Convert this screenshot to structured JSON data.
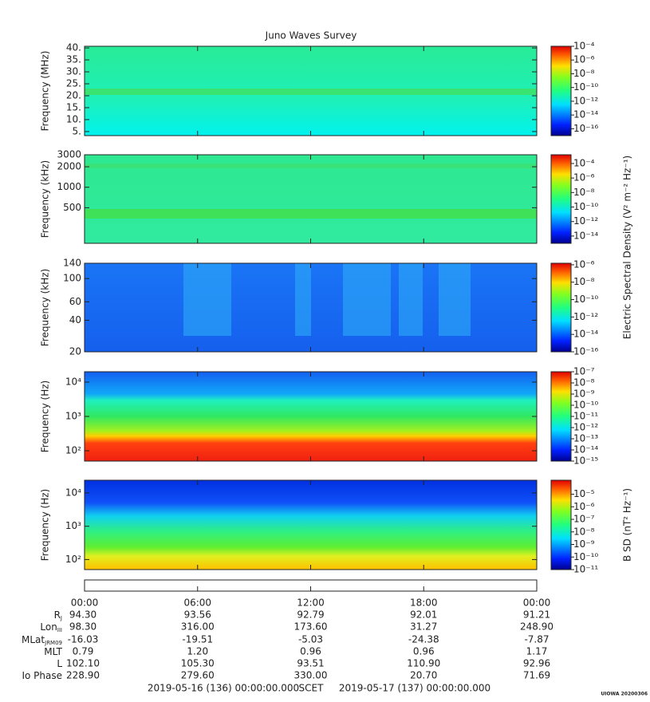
{
  "chart_data": [
    {
      "type": "spectrogram",
      "ylabel": "Frequency (MHz)",
      "log": false,
      "ylim": [
        3.3,
        40.7
      ],
      "yticks": [
        {
          "value": 5,
          "label": "5."
        },
        {
          "value": 10,
          "label": "10."
        },
        {
          "value": 15,
          "label": "15."
        },
        {
          "value": 20,
          "label": "20."
        },
        {
          "value": 25,
          "label": "25."
        },
        {
          "value": 30,
          "label": "30."
        },
        {
          "value": 35,
          "label": "35."
        },
        {
          "value": 40,
          "label": "40."
        }
      ],
      "colorbar": {
        "lim": [
          1e-17,
          0.0001
        ],
        "ticks": [
          {
            "value": 0.0001,
            "label": "10⁻⁴"
          },
          {
            "value": 1e-06,
            "label": "10⁻⁶"
          },
          {
            "value": 1e-08,
            "label": "10⁻⁸"
          },
          {
            "value": 1e-10,
            "label": "10⁻¹⁰"
          },
          {
            "value": 1e-12,
            "label": "10⁻¹²"
          },
          {
            "value": 1e-14,
            "label": "10⁻¹⁴"
          },
          {
            "value": 1e-16,
            "label": "10⁻¹⁶"
          }
        ]
      }
    },
    {
      "type": "spectrogram",
      "ylabel": "Frequency (kHz)",
      "log": true,
      "ylim": [
        150,
        3000
      ],
      "yticks": [
        500,
        1000,
        2000,
        3000
      ],
      "colorbar": {
        "lim": [
          1e-15,
          0.0016
        ],
        "ticks": [
          {
            "value": 0.0001,
            "label": "10⁻⁴"
          },
          {
            "value": 1e-06,
            "label": "10⁻⁶"
          },
          {
            "value": 1e-08,
            "label": "10⁻⁸"
          },
          {
            "value": 1e-10,
            "label": "10⁻¹⁰"
          },
          {
            "value": 1e-12,
            "label": "10⁻¹²"
          },
          {
            "value": 1e-14,
            "label": "10⁻¹⁴"
          }
        ]
      }
    },
    {
      "type": "spectrogram",
      "ylabel": "Frequency (kHz)",
      "log": true,
      "ylim": [
        20,
        140
      ],
      "yticks": [
        20,
        40,
        60,
        100,
        140
      ],
      "colorbar": {
        "lim": [
          1e-16,
          1.5e-06
        ],
        "ticks": [
          {
            "value": 1e-06,
            "label": "10⁻⁶"
          },
          {
            "value": 1e-08,
            "label": "10⁻⁸"
          },
          {
            "value": 1e-10,
            "label": "10⁻¹⁰"
          },
          {
            "value": 1e-12,
            "label": "10⁻¹²"
          },
          {
            "value": 1e-14,
            "label": "10⁻¹⁴"
          },
          {
            "value": 1e-16,
            "label": "10⁻¹⁶"
          }
        ]
      }
    },
    {
      "type": "spectrogram",
      "ylabel": "Frequency (Hz)",
      "log": true,
      "ylim": [
        50,
        20000
      ],
      "yticks": [
        {
          "value": 100,
          "label": "10²"
        },
        {
          "value": 1000,
          "label": "10³"
        },
        {
          "value": 10000,
          "label": "10⁴"
        }
      ],
      "colorbar": {
        "lim": [
          1e-15,
          1e-07
        ],
        "ticks": [
          {
            "value": 1e-07,
            "label": "10⁻⁷"
          },
          {
            "value": 1e-08,
            "label": "10⁻⁸"
          },
          {
            "value": 1e-09,
            "label": "10⁻⁹"
          },
          {
            "value": 1e-10,
            "label": "10⁻¹⁰"
          },
          {
            "value": 1e-11,
            "label": "10⁻¹¹"
          },
          {
            "value": 1e-12,
            "label": "10⁻¹²"
          },
          {
            "value": 1e-13,
            "label": "10⁻¹³"
          },
          {
            "value": 1e-14,
            "label": "10⁻¹⁴"
          },
          {
            "value": 1e-15,
            "label": "10⁻¹⁵"
          }
        ]
      }
    },
    {
      "type": "spectrogram",
      "ylabel": "Frequency (Hz)",
      "log": true,
      "ylim": [
        50,
        24000
      ],
      "yticks": [
        {
          "value": 100,
          "label": "10²"
        },
        {
          "value": 1000,
          "label": "10³"
        },
        {
          "value": 10000,
          "label": "10⁴"
        }
      ],
      "colorbar": {
        "lim": [
          1e-11,
          0.00013
        ],
        "ticks": [
          {
            "value": 1e-05,
            "label": "10⁻⁵"
          },
          {
            "value": 1e-06,
            "label": "10⁻⁶"
          },
          {
            "value": 1e-07,
            "label": "10⁻⁷"
          },
          {
            "value": 1e-08,
            "label": "10⁻⁸"
          },
          {
            "value": 1e-09,
            "label": "10⁻⁹"
          },
          {
            "value": 1e-10,
            "label": "10⁻¹⁰"
          },
          {
            "value": 1e-11,
            "label": "10⁻¹¹"
          }
        ]
      }
    }
  ],
  "title": "Juno Waves Survey",
  "electric_colorbar_label": "Electric Spectral Density (V² m⁻² Hz⁻¹)",
  "magnetic_colorbar_label": "B SD (nT² Hz⁻¹)",
  "time_axis": {
    "xlim": [
      0,
      24
    ],
    "xticks": [
      {
        "value": 0,
        "label": "00:00"
      },
      {
        "value": 6,
        "label": "06:00"
      },
      {
        "value": 12,
        "label": "12:00"
      },
      {
        "value": 18,
        "label": "18:00"
      },
      {
        "value": 24,
        "label": "00:00"
      }
    ]
  },
  "ephemeris": [
    {
      "label": "R",
      "subscript": "J",
      "values": [
        "94.30",
        "93.56",
        "92.79",
        "92.01",
        "91.21"
      ]
    },
    {
      "label": "Lon",
      "subscript": "III",
      "values": [
        "98.30",
        "316.00",
        "173.60",
        "31.27",
        "248.90"
      ]
    },
    {
      "label": "MLat",
      "subscript": "JRM09",
      "values": [
        "-16.03",
        "-19.51",
        "-5.03",
        "-24.38",
        "-7.87"
      ]
    },
    {
      "label": "MLT",
      "subscript": null,
      "values": [
        "0.79",
        "1.20",
        "0.96",
        "0.96",
        "1.17"
      ]
    },
    {
      "label": "L",
      "subscript": null,
      "values": [
        "102.10",
        "105.30",
        "93.51",
        "110.90",
        "92.96"
      ]
    },
    {
      "label": "Io Phase",
      "subscript": null,
      "values": [
        "228.90",
        "279.60",
        "330.00",
        "20.70",
        "71.69"
      ]
    }
  ],
  "footer": {
    "start": "2019-05-16 (136) 00:00:00.000",
    "scet": "SCET",
    "end": "2019-05-17 (137) 00:00:00.000"
  },
  "stamp": "UIOWA 20200306"
}
